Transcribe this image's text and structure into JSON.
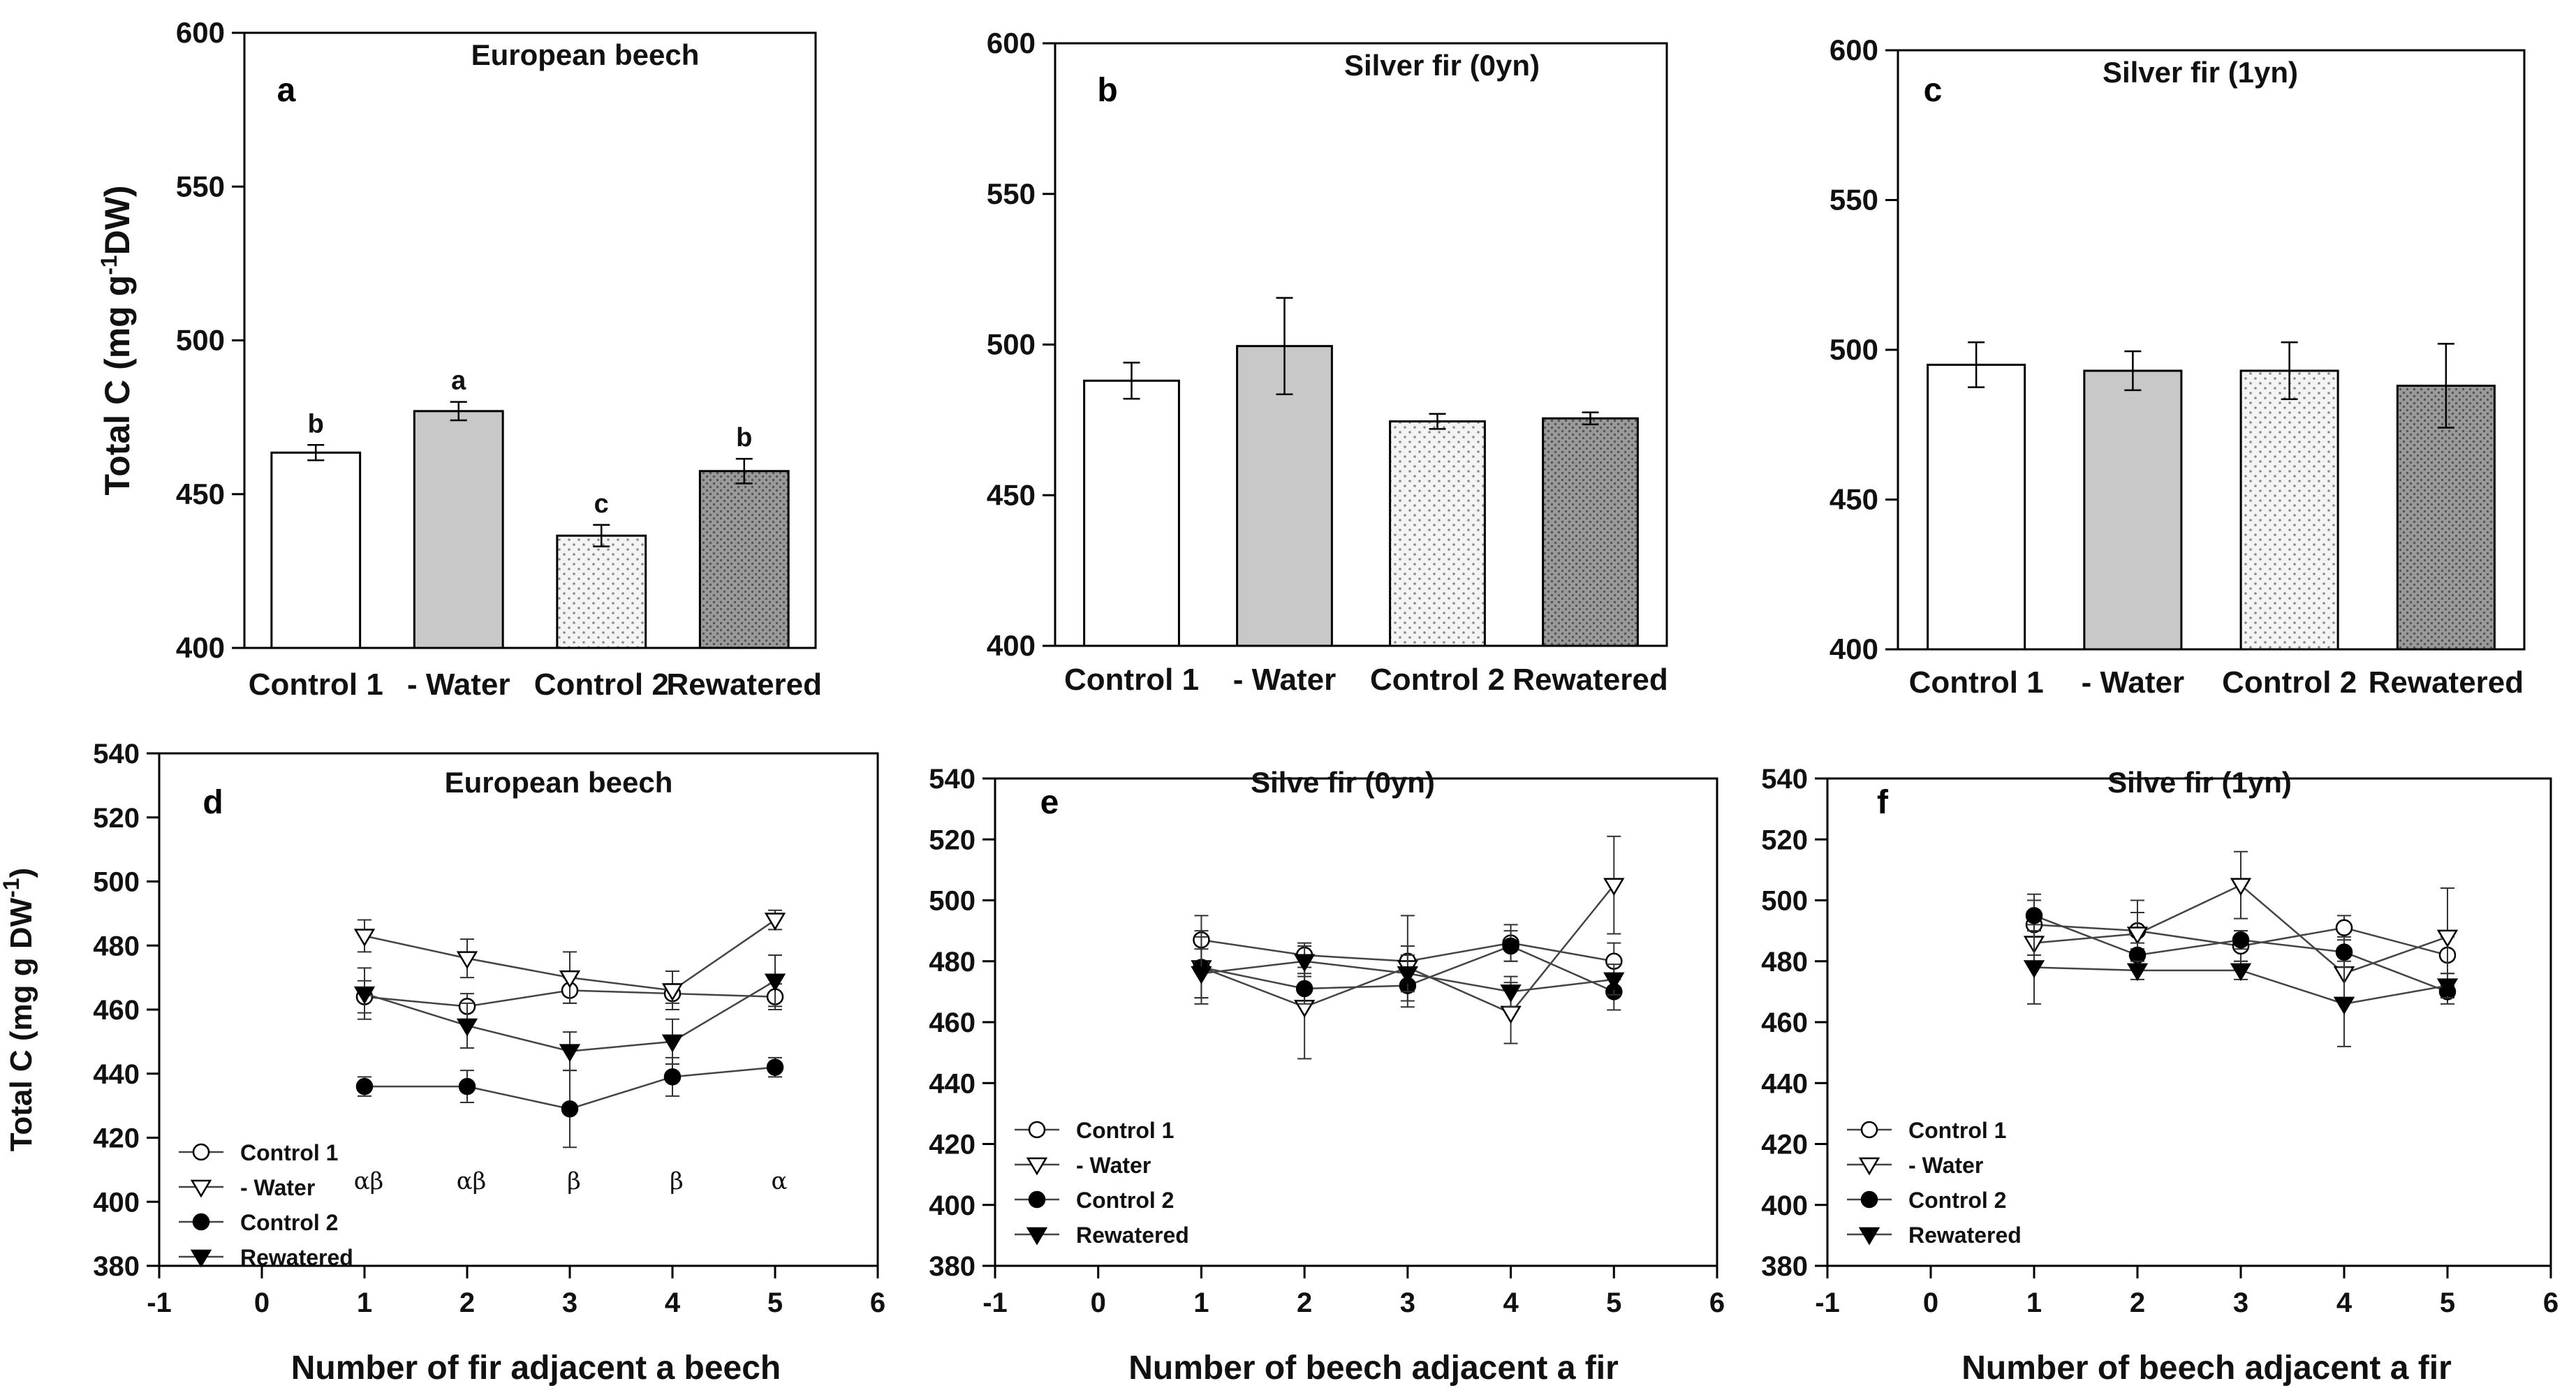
{
  "figure": {
    "description_labels": [
      "a",
      "b",
      "c",
      "d",
      "e",
      "f"
    ]
  },
  "colors": {
    "gray_bar": "#c8c8c8",
    "axis": "#000000",
    "line": "#444444"
  },
  "chart_data": [
    {
      "id": "a",
      "type": "bar",
      "panel_letter": "a",
      "title": "European beech",
      "ylabel": "Total C (mg g",
      "ylabel_sup": "-1",
      "ylabel_end": "DW)",
      "ylim": [
        400,
        600
      ],
      "yticks": [
        400,
        450,
        500,
        550,
        600
      ],
      "categories": [
        "Control 1",
        "- Water",
        "Control 2",
        "Rewatered"
      ],
      "values": [
        463.5,
        477,
        436.5,
        457.5
      ],
      "errors": [
        2.5,
        3,
        3.5,
        4
      ],
      "fills": [
        "white",
        "gray",
        "dots-light",
        "dots-dark"
      ],
      "sig_letters": [
        "b",
        "a",
        "c",
        "b"
      ]
    },
    {
      "id": "b",
      "type": "bar",
      "panel_letter": "b",
      "title": "Silver fir (0yn)",
      "ylim": [
        400,
        600
      ],
      "yticks": [
        400,
        450,
        500,
        550,
        600
      ],
      "categories": [
        "Control 1",
        "- Water",
        "Control 2",
        "Rewatered"
      ],
      "values": [
        488,
        499.5,
        474.5,
        475.5
      ],
      "errors": [
        6,
        16,
        2.5,
        2
      ],
      "fills": [
        "white",
        "gray",
        "dots-light",
        "dots-dark"
      ]
    },
    {
      "id": "c",
      "type": "bar",
      "panel_letter": "c",
      "title": "Silver fir (1yn)",
      "ylim": [
        400,
        600
      ],
      "yticks": [
        400,
        450,
        500,
        550,
        600
      ],
      "categories": [
        "Control 1",
        "- Water",
        "Control 2",
        "Rewatered"
      ],
      "values": [
        495,
        493,
        493,
        488
      ],
      "errors": [
        7.5,
        6.5,
        9.5,
        14
      ],
      "fills": [
        "white",
        "gray",
        "dots-light",
        "dots-dark"
      ]
    },
    {
      "id": "d",
      "type": "line",
      "panel_letter": "d",
      "title": "European beech",
      "ylabel": "Total C (mg g DW",
      "ylabel_sup": "-1",
      "ylabel_end": ")",
      "xlabel": "Number of fir adjacent a beech",
      "xlim": [
        -1,
        6
      ],
      "xticks": [
        -1,
        0,
        1,
        2,
        3,
        4,
        5,
        6
      ],
      "ylim": [
        380,
        540
      ],
      "yticks": [
        380,
        400,
        420,
        440,
        460,
        480,
        500,
        520,
        540
      ],
      "x": [
        1,
        2,
        3,
        4,
        5
      ],
      "series": [
        {
          "name": "Control 1",
          "marker": "circle-open",
          "values": [
            464,
            461,
            466,
            465,
            464
          ],
          "errors": [
            5,
            4,
            4,
            3,
            4
          ]
        },
        {
          "name": "- Water",
          "marker": "triangle-down-open",
          "values": [
            483,
            476,
            470,
            466,
            488
          ],
          "errors": [
            5,
            6,
            8,
            6,
            3
          ]
        },
        {
          "name": "Control 2",
          "marker": "circle-filled",
          "values": [
            436,
            436,
            429,
            439,
            442
          ],
          "errors": [
            3,
            5,
            12,
            6,
            3
          ]
        },
        {
          "name": "Rewatered",
          "marker": "triangle-down-filled",
          "values": [
            465,
            455,
            447,
            450,
            469
          ],
          "errors": [
            8,
            7,
            6,
            7,
            8
          ]
        }
      ],
      "annotations": [
        "αβ",
        "αβ",
        "β",
        "β",
        "α"
      ],
      "legend_position": "bottom-left"
    },
    {
      "id": "e",
      "type": "line",
      "panel_letter": "e",
      "title": "Silve fir (0yn)",
      "xlabel": "Number of beech adjacent a fir",
      "xlim": [
        -1,
        6
      ],
      "xticks": [
        -1,
        0,
        1,
        2,
        3,
        4,
        5,
        6
      ],
      "ylim": [
        380,
        540
      ],
      "yticks": [
        380,
        400,
        420,
        440,
        460,
        480,
        500,
        520,
        540
      ],
      "x": [
        1,
        2,
        3,
        4,
        5
      ],
      "series": [
        {
          "name": "Control 1",
          "marker": "circle-open",
          "values": [
            487,
            482,
            480,
            486,
            480
          ],
          "errors": [
            8,
            4,
            15,
            6,
            6
          ]
        },
        {
          "name": "- Water",
          "marker": "triangle-down-open",
          "values": [
            478,
            465,
            478,
            463,
            505
          ],
          "errors": [
            10,
            17,
            7,
            10,
            16
          ]
        },
        {
          "name": "Control 2",
          "marker": "circle-filled",
          "values": [
            478,
            471,
            472,
            485,
            470
          ],
          "errors": [
            12,
            5,
            5,
            5,
            6
          ]
        },
        {
          "name": "Rewatered",
          "marker": "triangle-down-filled",
          "values": [
            476,
            480,
            476,
            470,
            474
          ],
          "errors": [
            8,
            5,
            6,
            5,
            5
          ]
        }
      ],
      "legend_position": "bottom-left"
    },
    {
      "id": "f",
      "type": "line",
      "panel_letter": "f",
      "title": "Silve fir (1yn)",
      "xlabel": "Number of beech adjacent a fir",
      "xlim": [
        -1,
        6
      ],
      "xticks": [
        -1,
        0,
        1,
        2,
        3,
        4,
        5,
        6
      ],
      "ylim": [
        380,
        540
      ],
      "yticks": [
        380,
        400,
        420,
        440,
        460,
        480,
        500,
        520,
        540
      ],
      "x": [
        1,
        2,
        3,
        4,
        5
      ],
      "series": [
        {
          "name": "Control 1",
          "marker": "circle-open",
          "values": [
            492,
            490,
            485,
            491,
            482
          ],
          "errors": [
            10,
            6,
            5,
            4,
            6
          ]
        },
        {
          "name": "- Water",
          "marker": "triangle-down-open",
          "values": [
            486,
            489,
            505,
            476,
            488
          ],
          "errors": [
            6,
            11,
            11,
            8,
            16
          ]
        },
        {
          "name": "Control 2",
          "marker": "circle-filled",
          "values": [
            495,
            482,
            487,
            483,
            470
          ],
          "errors": [
            5,
            4,
            3,
            5,
            4
          ]
        },
        {
          "name": "Rewatered",
          "marker": "triangle-down-filled",
          "values": [
            478,
            477,
            477,
            466,
            472
          ],
          "errors": [
            12,
            3,
            3,
            14,
            4
          ]
        }
      ],
      "legend_position": "bottom-left"
    }
  ]
}
